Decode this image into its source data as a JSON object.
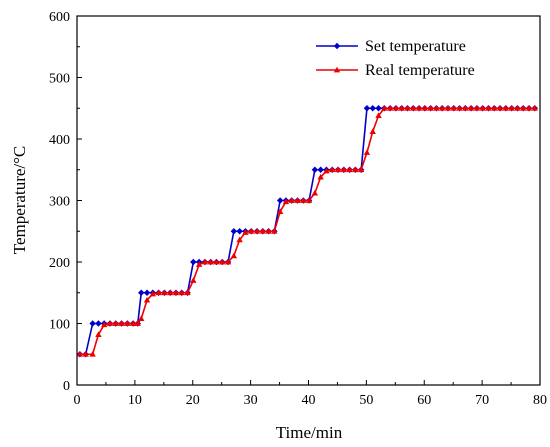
{
  "chart_data": {
    "type": "line",
    "xlabel": "Time/min",
    "ylabel": "Temperature/°C",
    "xlim": [
      0,
      80
    ],
    "ylim": [
      0,
      600
    ],
    "x_ticks": [
      0,
      10,
      20,
      30,
      40,
      50,
      60,
      70,
      80
    ],
    "y_ticks": [
      0,
      100,
      200,
      300,
      400,
      500,
      600
    ],
    "grid": false,
    "legend_position": "top-right",
    "series": [
      {
        "name": "Set temperature",
        "color": "#0000cc",
        "marker": "diamond",
        "x": [
          0.5,
          1.5,
          2.7,
          3.7,
          4.7,
          5.7,
          6.7,
          7.7,
          8.7,
          9.7,
          10.5,
          11.1,
          12.1,
          13.1,
          14.1,
          15.1,
          16.1,
          17.1,
          18.1,
          19.1,
          20.1,
          21.1,
          22.1,
          23.1,
          24.1,
          25.1,
          26.1,
          27.1,
          28.1,
          29.1,
          30.1,
          31.1,
          32.1,
          33.1,
          34.1,
          35.1,
          36.1,
          37.1,
          38.1,
          39.1,
          40.1,
          41.1,
          42.1,
          43.1,
          44.1,
          45.1,
          46.1,
          47.1,
          48.1,
          49.1,
          50.1,
          51.1,
          52.1,
          53.1,
          54.1,
          55.1,
          56.1,
          57.1,
          58.1,
          59.1,
          60.1,
          61.1,
          62.1,
          63.1,
          64.1,
          65.1,
          66.1,
          67.1,
          68.1,
          69.1,
          70.1,
          71.1,
          72.1,
          73.1,
          74.1,
          75.1,
          76.1,
          77.1,
          78.1,
          79.1
        ],
        "y": [
          50,
          50,
          100,
          100,
          100,
          100,
          100,
          100,
          100,
          100,
          100,
          150,
          150,
          150,
          150,
          150,
          150,
          150,
          150,
          150,
          200,
          200,
          200,
          200,
          200,
          200,
          200,
          250,
          250,
          250,
          250,
          250,
          250,
          250,
          250,
          300,
          300,
          300,
          300,
          300,
          300,
          350,
          350,
          350,
          350,
          350,
          350,
          350,
          350,
          350,
          450,
          450,
          450,
          450,
          450,
          450,
          450,
          450,
          450,
          450,
          450,
          450,
          450,
          450,
          450,
          450,
          450,
          450,
          450,
          450,
          450,
          450,
          450,
          450,
          450,
          450,
          450,
          450,
          450,
          450
        ]
      },
      {
        "name": "Real temperature",
        "color": "#ee0000",
        "marker": "triangle",
        "x": [
          0.5,
          1.5,
          2.7,
          3.7,
          4.7,
          5.7,
          6.7,
          7.7,
          8.7,
          9.7,
          10.5,
          11.1,
          12.1,
          13.1,
          14.1,
          15.1,
          16.1,
          17.1,
          18.1,
          19.1,
          20.1,
          21.1,
          22.1,
          23.1,
          24.1,
          25.1,
          26.1,
          27.1,
          28.1,
          29.1,
          30.1,
          31.1,
          32.1,
          33.1,
          34.1,
          35.1,
          36.1,
          37.1,
          38.1,
          39.1,
          40.1,
          41.1,
          42.1,
          43.1,
          44.1,
          45.1,
          46.1,
          47.1,
          48.1,
          49.1,
          50.1,
          51.1,
          52.1,
          53.1,
          54.1,
          55.1,
          56.1,
          57.1,
          58.1,
          59.1,
          60.1,
          61.1,
          62.1,
          63.1,
          64.1,
          65.1,
          66.1,
          67.1,
          68.1,
          69.1,
          70.1,
          71.1,
          72.1,
          73.1,
          74.1,
          75.1,
          76.1,
          77.1,
          78.1,
          79.1
        ],
        "y": [
          50,
          50,
          50,
          82,
          98,
          100,
          100,
          100,
          100,
          100,
          100,
          108,
          138,
          148,
          150,
          150,
          150,
          150,
          150,
          150,
          170,
          196,
          200,
          200,
          200,
          200,
          200,
          210,
          236,
          248,
          250,
          250,
          250,
          250,
          250,
          282,
          298,
          300,
          300,
          300,
          300,
          312,
          338,
          348,
          350,
          350,
          350,
          350,
          350,
          350,
          378,
          412,
          438,
          450,
          450,
          450,
          450,
          450,
          450,
          450,
          450,
          450,
          450,
          450,
          450,
          450,
          450,
          450,
          450,
          450,
          450,
          450,
          450,
          450,
          450,
          450,
          450,
          450,
          450,
          450
        ]
      }
    ]
  }
}
